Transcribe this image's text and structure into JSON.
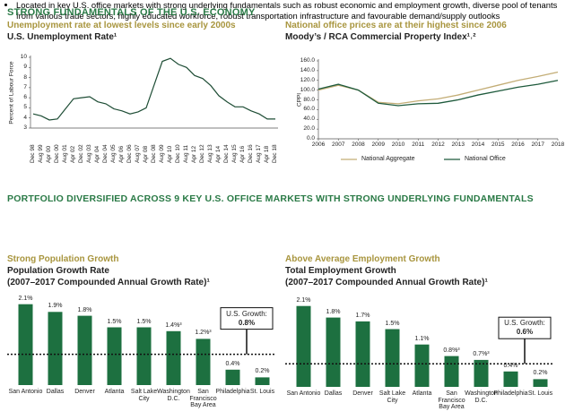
{
  "header": {
    "title": "STRONG FUNDAMENTALS OF THE U.S. ECONOMY"
  },
  "section": {
    "title": "PORTFOLIO DIVERSIFIED ACROSS 9 KEY U.S. OFFICE MARKETS WITH STRONG UNDERLYING FUNDAMENTALS",
    "bullet": "Located in key U.S. office markets with strong underlying fundamentals such as robust economic and employment growth, diverse pool of tenants from various trade sectors, highly educated workforce, robust transportation infrastructure and favourable demand/supply outlooks"
  },
  "chart_data": [
    {
      "type": "line",
      "subtitle": "Unemployment rate at lowest levels since early 2000s",
      "title": "U.S. Unemployment Rate¹",
      "y_label": "Percent of Labour Force",
      "color": "#1e4d35",
      "categories": [
        "Dec 98",
        "Aug 99",
        "Apr 00",
        "Dec 00",
        "Aug 01",
        "Apr 02",
        "Dec 02",
        "Aug 03",
        "Apr 04",
        "Dec 04",
        "Aug 05",
        "Apr 06",
        "Dec 06",
        "Aug 07",
        "Apr 08",
        "Dec 08",
        "Aug 09",
        "Apr 10",
        "Dec 10",
        "Aug 11",
        "Apr 12",
        "Dec 12",
        "Aug 13",
        "Apr 14",
        "Dec 14",
        "Aug 15",
        "Apr 16",
        "Dec 16",
        "Aug 17",
        "Apr 18",
        "Dec 18"
      ],
      "values": [
        4.4,
        4.2,
        3.8,
        3.9,
        4.9,
        5.9,
        6.0,
        6.1,
        5.6,
        5.4,
        4.9,
        4.7,
        4.4,
        4.6,
        5.0,
        7.3,
        9.6,
        9.9,
        9.3,
        9.0,
        8.2,
        7.9,
        7.2,
        6.2,
        5.6,
        5.1,
        5.1,
        4.7,
        4.4,
        3.9,
        3.9
      ],
      "ylim": [
        3,
        10
      ],
      "yticks": [
        3,
        4,
        5,
        6,
        7,
        8,
        9,
        10
      ]
    },
    {
      "type": "line",
      "subtitle": "National office prices are at their highest since 2006",
      "title": "Moody’s / RCA Commercial Property Index¹˒²",
      "y_label": "CPPI",
      "x": [
        2006,
        2007,
        2008,
        2009,
        2010,
        2011,
        2012,
        2013,
        2014,
        2015,
        2016,
        2017,
        2018
      ],
      "series": [
        {
          "name": "National Aggregate",
          "color": "#c3ad76",
          "values": [
            100,
            110,
            100,
            75,
            72,
            78,
            82,
            90,
            100,
            110,
            120,
            128,
            137
          ]
        },
        {
          "name": "National Office",
          "color": "#1e5a3c",
          "values": [
            102,
            112,
            100,
            73,
            68,
            72,
            73,
            80,
            90,
            98,
            106,
            112,
            120
          ]
        }
      ],
      "xlim": [
        2006,
        2018
      ],
      "xticks": [
        2006,
        2007,
        2008,
        2009,
        2010,
        2011,
        2012,
        2013,
        2014,
        2015,
        2016,
        2017,
        2018
      ],
      "ylim": [
        0,
        160
      ],
      "yticks": [
        {
          "value": 0,
          "label": "0.0"
        },
        {
          "value": 20,
          "label": "20.0"
        },
        {
          "value": 40,
          "label": "40.0"
        },
        {
          "value": 60,
          "label": "60.0"
        },
        {
          "value": 80,
          "label": "80.0"
        },
        {
          "value": 100,
          "label": "100.0"
        },
        {
          "value": 120,
          "label": "120.0"
        },
        {
          "value": 140,
          "label": "140.0"
        },
        {
          "value": 160,
          "label": "160.0"
        }
      ]
    },
    {
      "type": "bar",
      "subtitle": "Strong Population Growth",
      "title": "Population Growth Rate",
      "note": "(2007–2017 Compounded Annual Growth Rate)¹",
      "color": "#1d7040",
      "categories": [
        "San Antonio",
        "Dallas",
        "Denver",
        "Atlanta",
        "Salt Lake City",
        "Washington D.C.",
        "San Francisco Bay Area",
        "Philadelphia",
        "St. Louis"
      ],
      "values": [
        2.1,
        1.9,
        1.8,
        1.5,
        1.5,
        1.4,
        1.2,
        0.4,
        0.2
      ],
      "value_labels": [
        "2.1%",
        "1.9%",
        "1.8%",
        "1.5%",
        "1.5%",
        "1.4%³",
        "1.2%³",
        "0.4%",
        "0.2%"
      ],
      "reference": {
        "label": "U.S. Growth:",
        "value": 0.8,
        "value_label": "0.8%"
      }
    },
    {
      "type": "bar",
      "subtitle": "Above Average Employment Growth",
      "title": "Total Employment Growth",
      "note": "(2007–2017 Compounded Annual Growth Rate)¹",
      "color": "#1d7040",
      "categories": [
        "San Antonio",
        "Dallas",
        "Denver",
        "Salt Lake City",
        "Atlanta",
        "San Francisco Bay Area",
        "Washington D.C.",
        "Philadelphia",
        "St. Louis"
      ],
      "values": [
        2.1,
        1.8,
        1.7,
        1.5,
        1.1,
        0.8,
        0.7,
        0.4,
        0.2
      ],
      "value_labels": [
        "2.1%",
        "1.8%",
        "1.7%",
        "1.5%",
        "1.1%",
        "0.8%³",
        "0.7%³",
        "0.4%",
        "0.2%"
      ],
      "reference": {
        "label": "U.S. Growth:",
        "value": 0.6,
        "value_label": "0.6%"
      }
    }
  ]
}
